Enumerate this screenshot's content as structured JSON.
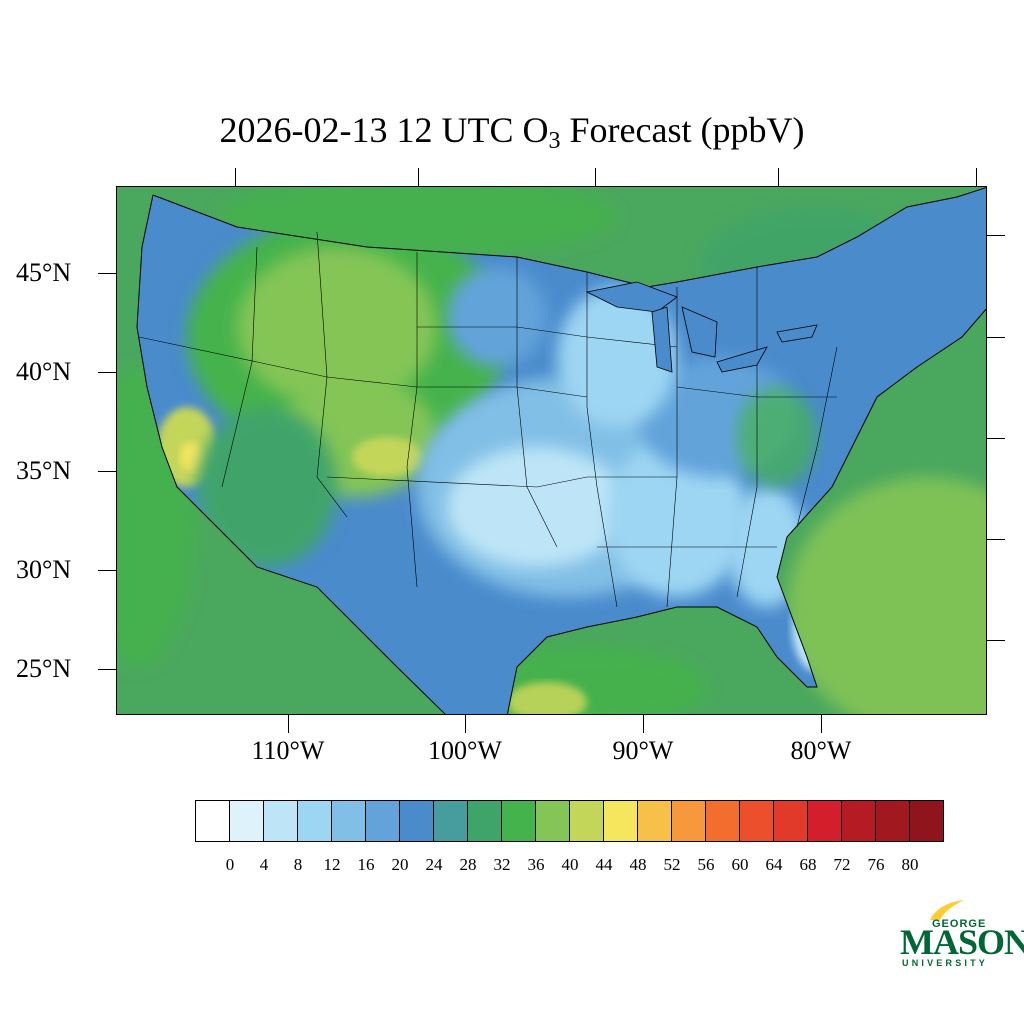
{
  "title": {
    "prefix": "2026-02-13 12 UTC O",
    "subscript": "3",
    "suffix": " Forecast (ppbV)"
  },
  "map": {
    "region": "Contiguous United States",
    "projection": "lambert-conformal",
    "ocean_color": "#4aa75e",
    "latitude_labels": [
      "45°N",
      "40°N",
      "35°N",
      "30°N",
      "25°N"
    ],
    "longitude_labels": [
      "110°W",
      "100°W",
      "90°W",
      "80°W"
    ]
  },
  "colorbar": {
    "levels": [
      "0",
      "4",
      "8",
      "12",
      "16",
      "20",
      "24",
      "28",
      "32",
      "36",
      "40",
      "44",
      "48",
      "52",
      "56",
      "60",
      "64",
      "68",
      "72",
      "76",
      "80"
    ],
    "colors": [
      "#ffffff",
      "#def2fb",
      "#bde5f7",
      "#9dd6f3",
      "#82bfe6",
      "#62a3da",
      "#4a8bcc",
      "#479d9d",
      "#3fa46a",
      "#45b34b",
      "#84c557",
      "#c4d65a",
      "#f5e65d",
      "#f7c149",
      "#f7983d",
      "#f26e2f",
      "#ec4f2c",
      "#e13a2a",
      "#d31f2b",
      "#b51b23",
      "#a1181f",
      "#8f141c"
    ]
  },
  "logo": {
    "line1": "GEORGE",
    "line2": "MASON",
    "line3": "UNIVERSITY"
  }
}
